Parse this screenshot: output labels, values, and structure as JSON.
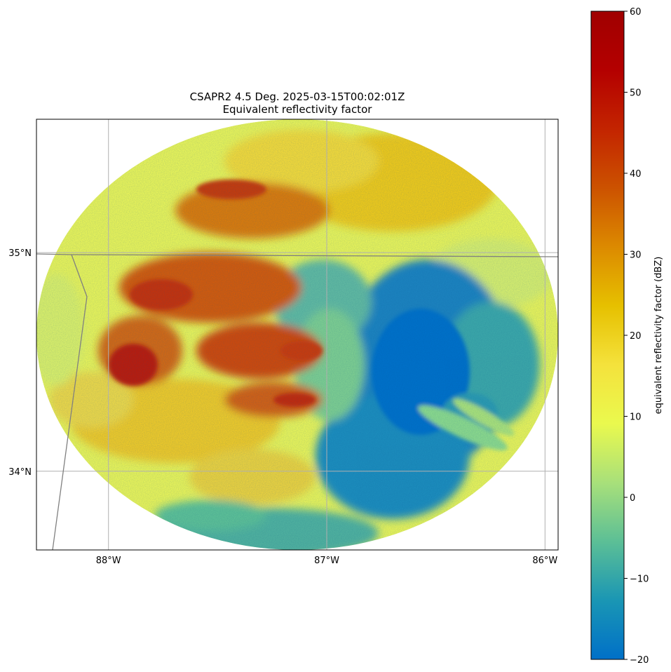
{
  "title": "CSAPR2 4.5 Deg. 2025-03-15T00:02:01Z",
  "subtitle": "Equivalent reflectivity factor",
  "map": {
    "lon_range": [
      -88.33,
      -85.94
    ],
    "lat_range": [
      33.64,
      35.61
    ],
    "lon_ticks": [
      {
        "value": -88,
        "label": "88°W"
      },
      {
        "value": -87,
        "label": "87°W"
      },
      {
        "value": -86,
        "label": "86°W"
      }
    ],
    "lat_ticks": [
      {
        "value": 35,
        "label": "35°N"
      },
      {
        "value": 34,
        "label": "34°N"
      }
    ],
    "gridlines": true,
    "gridline_color": "#b0b0b0",
    "border_color": "#808080"
  },
  "colorbar": {
    "label": "equivalent reflectivity factor (dBZ)",
    "vmin": -20,
    "vmax": 60,
    "ticks": [
      -20,
      -10,
      0,
      10,
      20,
      30,
      40,
      50,
      60
    ],
    "tick_labels": [
      "−20",
      "−10",
      "0",
      "10",
      "20",
      "30",
      "40",
      "50",
      "60"
    ],
    "stops": [
      "#0070c8",
      "#1a96b4",
      "#5cbf96",
      "#a8e07a",
      "#eaf94e",
      "#f4e23c",
      "#e6c000",
      "#dc8a00",
      "#cc5200",
      "#c32400",
      "#b40000",
      "#a00000"
    ],
    "orientation": "vertical",
    "position": "right"
  }
}
